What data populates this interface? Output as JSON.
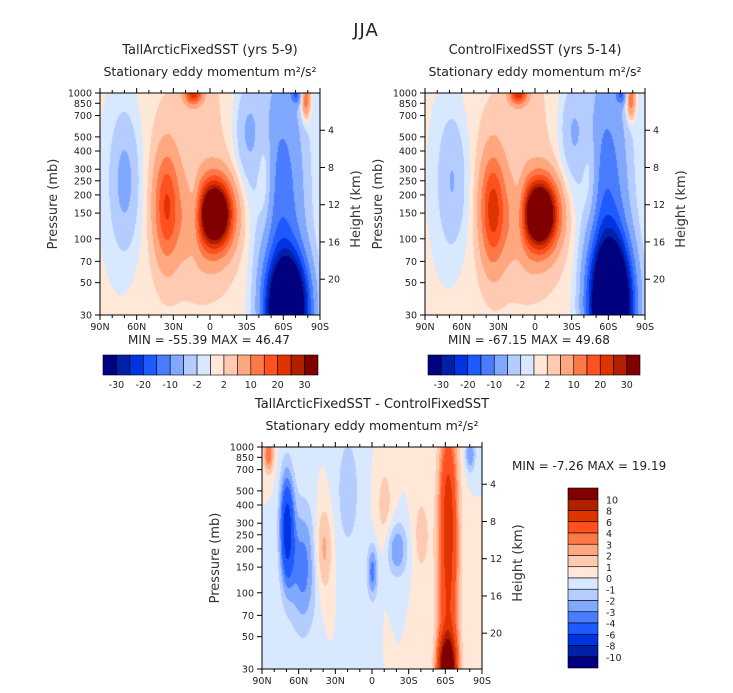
{
  "title": "JJA",
  "chart_data": {
    "type": "heatmap",
    "subtype": "filled-contour",
    "x_tick_labels": [
      "90N",
      "60N",
      "30N",
      "0",
      "30S",
      "60S",
      "90S"
    ],
    "x_tick_values": [
      90,
      60,
      30,
      0,
      -30,
      -60,
      -90
    ],
    "y_label": "Pressure (mb)",
    "y_tick_labels": [
      "30",
      "50",
      "70",
      "100",
      "150",
      "200",
      "250",
      "300",
      "400",
      "500",
      "700",
      "850",
      "1000"
    ],
    "y_range_mb": [
      1000,
      30
    ],
    "y2_label": "Height (km)",
    "y2_tick_labels": [
      "4",
      "8",
      "12",
      "16",
      "20"
    ],
    "units_label": "m²/s²",
    "panels": [
      {
        "title": "TallArcticFixedSST (yrs 5-9)",
        "subtitle": "Stationary eddy momentum  m²/s²",
        "min_label": "MIN =  -55.39   MAX =   46.47",
        "min": -55.39,
        "max": 46.47,
        "levels": [
          -30,
          -25,
          -20,
          -15,
          -10,
          -5,
          -2,
          0,
          2,
          5,
          10,
          15,
          20,
          25,
          30
        ],
        "colorbar_labels": [
          "-30",
          "-20",
          "-10",
          "-2",
          "2",
          "10",
          "20",
          "30"
        ],
        "features": [
          {
            "lat": -63,
            "p": 33,
            "amp": -60,
            "wlat": 11,
            "wlnp": 0.55
          },
          {
            "lat": -58,
            "p": 150,
            "amp": -14,
            "wlat": 13,
            "wlnp": 1.6
          },
          {
            "lat": -4,
            "p": 150,
            "amp": 46,
            "wlat": 9,
            "wlnp": 0.35
          },
          {
            "lat": 5,
            "p": 130,
            "amp": 8,
            "wlat": 16,
            "wlnp": 0.5
          },
          {
            "lat": 36,
            "p": 170,
            "amp": 18,
            "wlat": 7,
            "wlnp": 0.6
          },
          {
            "lat": 13,
            "p": 150,
            "amp": -8,
            "wlat": 4,
            "wlnp": 0.4
          },
          {
            "lat": 70,
            "p": 250,
            "amp": -7,
            "wlat": 9,
            "wlnp": 0.8
          },
          {
            "lat": -45,
            "p": 250,
            "amp": 6,
            "wlat": 5,
            "wlnp": 0.6
          },
          {
            "lat": -30,
            "p": 550,
            "amp": -6,
            "wlat": 8,
            "wlnp": 0.6
          },
          {
            "lat": 14,
            "p": 1000,
            "amp": 22,
            "wlat": 5,
            "wlnp": 0.12
          },
          {
            "lat": -78,
            "p": 900,
            "amp": 15,
            "wlat": 2.5,
            "wlnp": 0.2
          },
          {
            "lat": -70,
            "p": 980,
            "amp": -12,
            "wlat": 3,
            "wlnp": 0.1
          },
          {
            "lat": 10,
            "p": 300,
            "amp": 2.5,
            "wlat": 40,
            "wlnp": 2.5
          }
        ]
      },
      {
        "title": "ControlFixedSST (yrs 5-14)",
        "subtitle": "Stationary eddy momentum  m²/s²",
        "min_label": "MIN =  -67.15   MAX =   49.68",
        "min": -67.15,
        "max": 49.68,
        "levels": [
          -30,
          -25,
          -20,
          -15,
          -10,
          -5,
          -2,
          0,
          2,
          5,
          10,
          15,
          20,
          25,
          30
        ],
        "colorbar_labels": [
          "-30",
          "-20",
          "-10",
          "-2",
          "2",
          "10",
          "20",
          "30"
        ],
        "features": [
          {
            "lat": -62,
            "p": 35,
            "amp": -67,
            "wlat": 11,
            "wlnp": 0.65
          },
          {
            "lat": -58,
            "p": 150,
            "amp": -15,
            "wlat": 12,
            "wlnp": 1.6
          },
          {
            "lat": -4,
            "p": 150,
            "amp": 49,
            "wlat": 9,
            "wlnp": 0.35
          },
          {
            "lat": 5,
            "p": 130,
            "amp": 8,
            "wlat": 16,
            "wlnp": 0.5
          },
          {
            "lat": 35,
            "p": 160,
            "amp": 20,
            "wlat": 7,
            "wlnp": 0.6
          },
          {
            "lat": 13,
            "p": 150,
            "amp": -7,
            "wlat": 4,
            "wlnp": 0.4
          },
          {
            "lat": 68,
            "p": 250,
            "amp": -6,
            "wlat": 9,
            "wlnp": 0.8
          },
          {
            "lat": -45,
            "p": 250,
            "amp": 5,
            "wlat": 5,
            "wlnp": 0.6
          },
          {
            "lat": -30,
            "p": 550,
            "amp": -6,
            "wlat": 8,
            "wlnp": 0.6
          },
          {
            "lat": 14,
            "p": 1000,
            "amp": 22,
            "wlat": 5,
            "wlnp": 0.12
          },
          {
            "lat": -78,
            "p": 900,
            "amp": 15,
            "wlat": 2.5,
            "wlnp": 0.2
          },
          {
            "lat": -70,
            "p": 980,
            "amp": -12,
            "wlat": 3,
            "wlnp": 0.1
          },
          {
            "lat": 10,
            "p": 300,
            "amp": 2.5,
            "wlat": 40,
            "wlnp": 2.5
          }
        ]
      },
      {
        "title": "TallArcticFixedSST - ControlFixedSST",
        "subtitle": "Stationary eddy momentum  m²/s²",
        "min_label": "MIN =  -7.26   MAX =   19.19",
        "min": -7.26,
        "max": 19.19,
        "levels": [
          -10,
          -8,
          -6,
          -4,
          -3,
          -2,
          -1,
          0,
          1,
          2,
          3,
          4,
          6,
          8,
          10
        ],
        "colorbar_labels": [
          "10",
          "8",
          "6",
          "4",
          "3",
          "2",
          "1",
          "0",
          "-1",
          "-2",
          "-3",
          "-4",
          "-6",
          "-8",
          "-10"
        ],
        "features": [
          {
            "lat": -61,
            "p": 30,
            "amp": 13,
            "wlat": 5,
            "wlnp": 0.35
          },
          {
            "lat": -62,
            "p": 120,
            "amp": 6,
            "wlat": 6,
            "wlnp": 1.5
          },
          {
            "lat": -62,
            "p": 500,
            "amp": 3,
            "wlat": 5,
            "wlnp": 0.8
          },
          {
            "lat": 70,
            "p": 280,
            "amp": -7,
            "wlat": 4,
            "wlnp": 0.6
          },
          {
            "lat": 57,
            "p": 150,
            "amp": -3.5,
            "wlat": 8,
            "wlnp": 0.7
          },
          {
            "lat": 40,
            "p": 200,
            "amp": 2.5,
            "wlat": 5,
            "wlnp": 0.5
          },
          {
            "lat": 0,
            "p": 140,
            "amp": -3.5,
            "wlat": 3,
            "wlnp": 0.3
          },
          {
            "lat": -20,
            "p": 200,
            "amp": -3,
            "wlat": 6,
            "wlnp": 0.3
          },
          {
            "lat": -40,
            "p": 250,
            "amp": 1.5,
            "wlat": 5,
            "wlnp": 0.5
          },
          {
            "lat": -10,
            "p": 400,
            "amp": 1.5,
            "wlat": 5,
            "wlnp": 0.5
          },
          {
            "lat": 20,
            "p": 500,
            "amp": -1.5,
            "wlat": 8,
            "wlnp": 0.8
          },
          {
            "lat": 85,
            "p": 900,
            "amp": 4,
            "wlat": 3,
            "wlnp": 0.2
          },
          {
            "lat": -80,
            "p": 900,
            "amp": -3,
            "wlat": 3,
            "wlnp": 0.2
          }
        ]
      }
    ],
    "colors": [
      "#000080",
      "#0020a8",
      "#0034e0",
      "#1e5aff",
      "#4a7cff",
      "#80a8ff",
      "#b4ccff",
      "#d8e8ff",
      "#ffe8d8",
      "#ffcab2",
      "#ffa880",
      "#ff7848",
      "#ff5020",
      "#e03400",
      "#b02000",
      "#800000"
    ]
  }
}
